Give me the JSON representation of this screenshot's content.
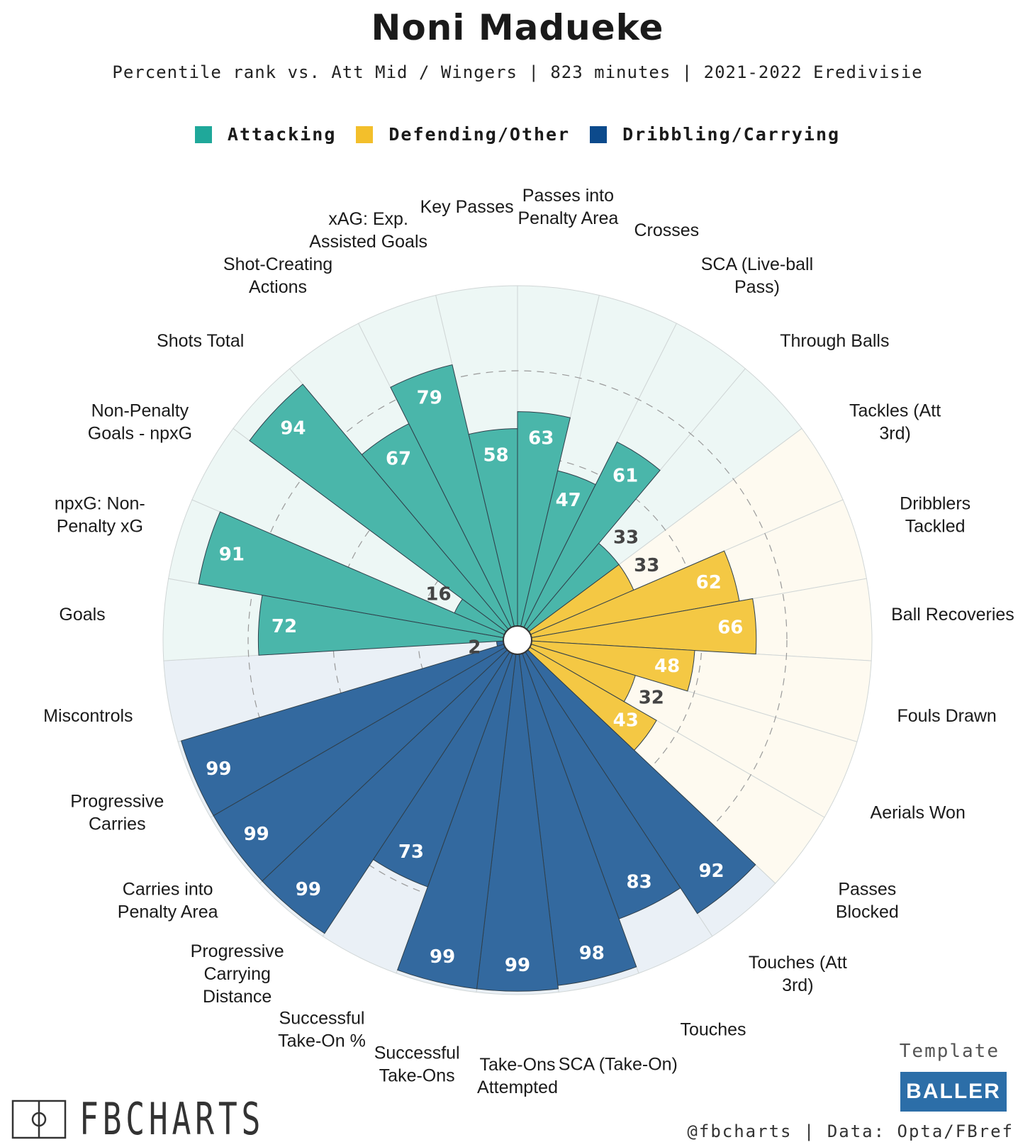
{
  "title": "Noni Madueke",
  "subtitle": "Percentile rank vs. Att Mid / Wingers | 823 minutes | 2021-2022 Eredivisie",
  "legend": [
    {
      "label": "Attacking",
      "color": "#1fa89a"
    },
    {
      "label": "Defending/Other",
      "color": "#f3bf2b"
    },
    {
      "label": "Dribbling/Carrying",
      "color": "#0c4a8c"
    }
  ],
  "chart_data": {
    "type": "polar-bar",
    "title": "Noni Madueke",
    "scale": [
      0,
      100
    ],
    "groups": [
      {
        "name": "Attacking",
        "bar_color": "#4ab6aa",
        "bg_color": "#edf7f5",
        "label_color": "#ffffff"
      },
      {
        "name": "Defending/Other",
        "bar_color": "#f4c844",
        "bg_color": "#fefaf0",
        "label_color": "#ffffff"
      },
      {
        "name": "Dribbling/Carrying",
        "bar_color": "#33699f",
        "bg_color": "#eaf0f6",
        "label_color": "#ffffff"
      }
    ],
    "stats": [
      {
        "label": "Passes into Penalty Area",
        "value": 63,
        "group": "Attacking"
      },
      {
        "label": "Crosses",
        "value": 47,
        "group": "Attacking"
      },
      {
        "label": "SCA (Live-ball Pass)",
        "value": 61,
        "group": "Attacking"
      },
      {
        "label": "Through Balls",
        "value": 33,
        "group": "Attacking"
      },
      {
        "label": "Tackles (Att 3rd)",
        "value": 33,
        "group": "Defending/Other"
      },
      {
        "label": "Dribblers Tackled",
        "value": 62,
        "group": "Defending/Other"
      },
      {
        "label": "Ball Recoveries",
        "value": 66,
        "group": "Defending/Other"
      },
      {
        "label": "Fouls Drawn",
        "value": 48,
        "group": "Defending/Other"
      },
      {
        "label": "Aerials Won",
        "value": 32,
        "group": "Defending/Other"
      },
      {
        "label": "Passes Blocked",
        "value": 43,
        "group": "Defending/Other"
      },
      {
        "label": "Touches (Att 3rd)",
        "value": 92,
        "group": "Dribbling/Carrying"
      },
      {
        "label": "Touches",
        "value": 83,
        "group": "Dribbling/Carrying"
      },
      {
        "label": "SCA (Take-On)",
        "value": 98,
        "group": "Dribbling/Carrying"
      },
      {
        "label": "Take-Ons Attempted",
        "value": 99,
        "group": "Dribbling/Carrying"
      },
      {
        "label": "Successful Take-Ons",
        "value": 99,
        "group": "Dribbling/Carrying"
      },
      {
        "label": "Successful Take-On %",
        "value": 73,
        "group": "Dribbling/Carrying"
      },
      {
        "label": "Progressive Carrying Distance",
        "value": 99,
        "group": "Dribbling/Carrying"
      },
      {
        "label": "Carries into Penalty Area",
        "value": 99,
        "group": "Dribbling/Carrying"
      },
      {
        "label": "Progressive Carries",
        "value": 99,
        "group": "Dribbling/Carrying"
      },
      {
        "label": "Miscontrols",
        "value": 2,
        "group": "Dribbling/Carrying"
      },
      {
        "label": "Goals",
        "value": 72,
        "group": "Attacking"
      },
      {
        "label": "npxG: Non-Penalty xG",
        "value": 91,
        "group": "Attacking"
      },
      {
        "label": "Non-Penalty Goals - npxG",
        "value": 16,
        "group": "Attacking"
      },
      {
        "label": "Shots Total",
        "value": 94,
        "group": "Attacking"
      },
      {
        "label": "Shot-Creating Actions",
        "value": 67,
        "group": "Attacking"
      },
      {
        "label": "xAG: Exp. Assisted Goals",
        "value": 79,
        "group": "Attacking"
      },
      {
        "label": "Key Passes",
        "value": 58,
        "group": "Attacking"
      }
    ],
    "stat_labels_display": [
      [
        "Passes into",
        "Penalty Area"
      ],
      [
        "Crosses"
      ],
      [
        "SCA (Live-ball",
        "Pass)"
      ],
      [
        "Through Balls"
      ],
      [
        "Tackles (Att",
        "3rd)"
      ],
      [
        "Dribblers",
        "Tackled"
      ],
      [
        "Ball Recoveries"
      ],
      [
        "Fouls Drawn"
      ],
      [
        "Aerials Won"
      ],
      [
        "Passes",
        "Blocked"
      ],
      [
        "Touches (Att",
        "3rd)"
      ],
      [
        "Touches"
      ],
      [
        "SCA (Take-On)"
      ],
      [
        "Take-Ons",
        "Attempted"
      ],
      [
        "Successful",
        "Take-Ons"
      ],
      [
        "Successful",
        "Take-On %"
      ],
      [
        "Progressive",
        "Carrying",
        "Distance"
      ],
      [
        "Carries into",
        "Penalty Area"
      ],
      [
        "Progressive",
        "Carries"
      ],
      [
        "Miscontrols"
      ],
      [
        "Goals"
      ],
      [
        "npxG: Non-",
        "Penalty xG"
      ],
      [
        "Non-Penalty",
        "Goals - npxG"
      ],
      [
        "Shots Total"
      ],
      [
        "Shot-Creating",
        "Actions"
      ],
      [
        "xAG: Exp.",
        "Assisted Goals"
      ],
      [
        "Key Passes"
      ]
    ],
    "gridlines": [
      25,
      50,
      75
    ],
    "grid_style": "dashed"
  },
  "credits": {
    "template_label": "Template",
    "template_name": "BALLER",
    "footer": "@fbcharts | Data: Opta/FBref",
    "logo_text": "FBCHARTS"
  }
}
